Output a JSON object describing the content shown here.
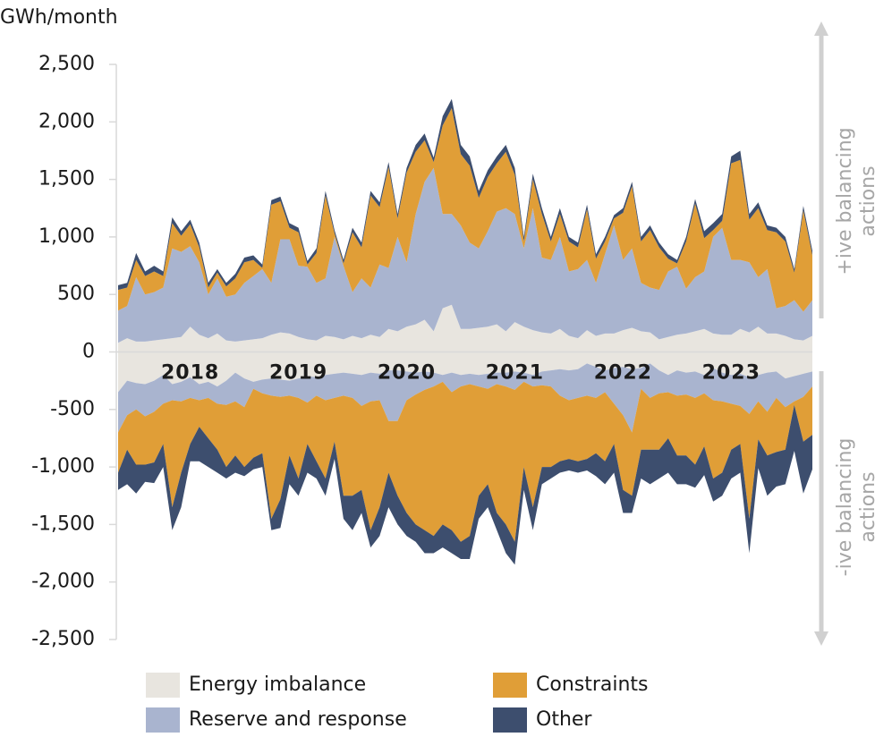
{
  "chart_data": {
    "type": "diverging-stacked-area",
    "y_unit_label": "GWh/month",
    "positive_label": "+ive balancing actions",
    "negative_label": "-ive balancing actions",
    "categories": [
      null,
      null,
      null,
      null,
      null,
      null,
      null,
      null,
      "2018",
      null,
      null,
      null,
      null,
      null,
      null,
      null,
      null,
      null,
      null,
      null,
      "2019",
      null,
      null,
      null,
      null,
      null,
      null,
      null,
      null,
      null,
      null,
      null,
      "2020",
      null,
      null,
      null,
      null,
      null,
      null,
      null,
      null,
      null,
      null,
      null,
      "2021",
      null,
      null,
      null,
      null,
      null,
      null,
      null,
      null,
      null,
      null,
      null,
      "2022",
      null,
      null,
      null,
      null,
      null,
      null,
      null,
      null,
      null,
      null,
      null,
      "2023",
      null,
      null,
      null,
      null,
      null,
      null,
      null,
      null,
      null
    ],
    "ylim": [
      -2500,
      2500
    ],
    "yticks": [
      {
        "value": 2500,
        "label": "2,500"
      },
      {
        "value": 2000,
        "label": "2,000"
      },
      {
        "value": 1500,
        "label": "1,500"
      },
      {
        "value": 1000,
        "label": "1,000"
      },
      500,
      0,
      -500,
      {
        "value": -1000,
        "label": "-1,000"
      },
      {
        "value": -1500,
        "label": "-1,500"
      },
      {
        "value": -2000,
        "label": "-2,000"
      },
      {
        "value": -2500,
        "label": "-2,500"
      }
    ],
    "series": [
      {
        "name": "Energy imbalance",
        "color": "#e8e5df",
        "values": [
          80,
          120,
          90,
          90,
          100,
          110,
          120,
          130,
          220,
          150,
          120,
          160,
          100,
          90,
          100,
          110,
          120,
          150,
          170,
          160,
          130,
          110,
          100,
          140,
          130,
          110,
          140,
          120,
          150,
          130,
          200,
          180,
          220,
          240,
          280,
          180,
          380,
          410,
          200,
          200,
          210,
          220,
          240,
          180,
          260,
          220,
          190,
          170,
          160,
          200,
          140,
          120,
          190,
          140,
          160,
          160,
          190,
          210,
          180,
          170,
          110,
          130,
          150,
          160,
          180,
          200,
          160,
          150,
          150,
          200,
          170,
          220,
          160,
          160,
          140,
          110,
          100,
          140
        ],
        "negative_values": [
          -350,
          -250,
          -270,
          -280,
          -250,
          -200,
          -280,
          -260,
          -220,
          -280,
          -260,
          -300,
          -250,
          -180,
          -230,
          -260,
          -240,
          -230,
          -240,
          -250,
          -230,
          -210,
          -220,
          -200,
          -190,
          -180,
          -190,
          -200,
          -180,
          -190,
          -160,
          -160,
          -170,
          -180,
          -170,
          -180,
          -200,
          -180,
          -200,
          -190,
          -200,
          -190,
          -180,
          -180,
          -170,
          -180,
          -200,
          -170,
          -160,
          -150,
          -160,
          -150,
          -100,
          -130,
          -160,
          -140,
          -130,
          -150,
          -140,
          -100,
          -160,
          -200,
          -160,
          -180,
          -170,
          -200,
          -140,
          -180,
          -200,
          -190,
          -220,
          -200,
          -180,
          -170,
          -230,
          -210,
          -190,
          -170
        ]
      },
      {
        "name": "Reserve and response",
        "color": "#a9b4cf",
        "values": [
          280,
          280,
          560,
          410,
          420,
          450,
          780,
          740,
          700,
          630,
          380,
          480,
          380,
          410,
          500,
          550,
          600,
          450,
          810,
          820,
          620,
          630,
          500,
          500,
          870,
          640,
          380,
          520,
          410,
          630,
          530,
          820,
          560,
          960,
          1200,
          1420,
          820,
          790,
          900,
          750,
          690,
          830,
          980,
          1070,
          940,
          680,
          1060,
          650,
          640,
          800,
          560,
          600,
          610,
          460,
          690,
          940,
          610,
          690,
          420,
          390,
          430,
          570,
          590,
          390,
          470,
          500,
          840,
          930,
          650,
          600,
          610,
          430,
          560,
          220,
          260,
          340,
          250,
          310
        ],
        "negative_values": [
          -350,
          -300,
          -230,
          -280,
          -270,
          -250,
          -140,
          -170,
          -180,
          -140,
          -140,
          -150,
          -210,
          -250,
          -250,
          -60,
          -120,
          -150,
          -150,
          -130,
          -170,
          -230,
          -160,
          -220,
          -210,
          -200,
          -210,
          -270,
          -250,
          -230,
          -440,
          -440,
          -250,
          -190,
          -160,
          -120,
          -60,
          -170,
          -100,
          -90,
          -100,
          -130,
          -100,
          -120,
          -160,
          -80,
          -100,
          -120,
          -140,
          -230,
          -260,
          -250,
          -280,
          -270,
          -190,
          -310,
          -420,
          -550,
          -180,
          -300,
          -200,
          -150,
          -220,
          -190,
          -230,
          -160,
          -280,
          -250,
          -250,
          -280,
          -320,
          -230,
          -340,
          -230,
          -250,
          -220,
          -200,
          -130
        ]
      },
      {
        "name": "Constraints",
        "color": "#e09e37",
        "values": [
          180,
          160,
          150,
          160,
          180,
          100,
          220,
          140,
          190,
          130,
          60,
          50,
          90,
          140,
          180,
          140,
          10,
          680,
          330,
          100,
          290,
          20,
          260,
          720,
          30,
          20,
          520,
          270,
          800,
          500,
          880,
          160,
          780,
          540,
          360,
          50,
          770,
          920,
          620,
          670,
          440,
          470,
          420,
          490,
          340,
          60,
          250,
          380,
          160,
          200,
          260,
          190,
          440,
          210,
          110,
          60,
          410,
          540,
          360,
          500,
          370,
          110,
          30,
          410,
          640,
          290,
          60,
          60,
          840,
          870,
          370,
          600,
          340,
          660,
          560,
          240,
          880,
          390
        ],
        "negative_values": [
          -350,
          -300,
          -480,
          -420,
          -440,
          -350,
          -930,
          -620,
          -400,
          -230,
          -350,
          -400,
          -540,
          -470,
          -520,
          -600,
          -520,
          -1070,
          -890,
          -520,
          -700,
          -360,
          -570,
          -680,
          -380,
          -870,
          -850,
          -730,
          -1120,
          -930,
          -450,
          -650,
          -980,
          -1130,
          -1220,
          -1300,
          -1240,
          -1200,
          -1350,
          -1320,
          -950,
          -830,
          -1120,
          -1200,
          -1320,
          -740,
          -1050,
          -710,
          -700,
          -570,
          -510,
          -550,
          -550,
          -480,
          -600,
          -350,
          -650,
          -550,
          -530,
          -450,
          -490,
          -400,
          -520,
          -530,
          -580,
          -460,
          -680,
          -620,
          -400,
          -330,
          -910,
          -330,
          -380,
          -470,
          -370,
          -30,
          -390,
          -420
        ]
      },
      {
        "name": "Other",
        "color": "#3d4e6e",
        "values": [
          40,
          40,
          60,
          40,
          50,
          40,
          50,
          40,
          40,
          40,
          40,
          30,
          30,
          40,
          40,
          40,
          30,
          40,
          40,
          40,
          40,
          30,
          40,
          40,
          30,
          30,
          40,
          40,
          40,
          40,
          40,
          40,
          40,
          60,
          60,
          40,
          80,
          80,
          80,
          80,
          60,
          60,
          60,
          60,
          60,
          40,
          50,
          50,
          40,
          50,
          40,
          40,
          40,
          40,
          40,
          30,
          40,
          40,
          40,
          40,
          40,
          40,
          30,
          40,
          40,
          60,
          60,
          60,
          60,
          80,
          50,
          50,
          40,
          40,
          40,
          30,
          40,
          40
        ],
        "negative_values": [
          -150,
          -300,
          -250,
          -150,
          -180,
          -200,
          -200,
          -300,
          -150,
          -300,
          -250,
          -200,
          -100,
          -150,
          -80,
          -100,
          -120,
          -100,
          -250,
          -250,
          -150,
          -250,
          -150,
          -150,
          -150,
          -200,
          -300,
          -200,
          -150,
          -250,
          -300,
          -250,
          -200,
          -150,
          -200,
          -150,
          -200,
          -200,
          -150,
          -200,
          -200,
          -200,
          -150,
          -250,
          -200,
          -200,
          -200,
          -150,
          -100,
          -100,
          -100,
          -100,
          -100,
          -200,
          -200,
          -250,
          -200,
          -150,
          -250,
          -300,
          -250,
          -300,
          -250,
          -250,
          -200,
          -250,
          -200,
          -200,
          -250,
          -250,
          -300,
          -250,
          -350,
          -300,
          -300,
          -400,
          -450,
          -300
        ]
      }
    ]
  }
}
